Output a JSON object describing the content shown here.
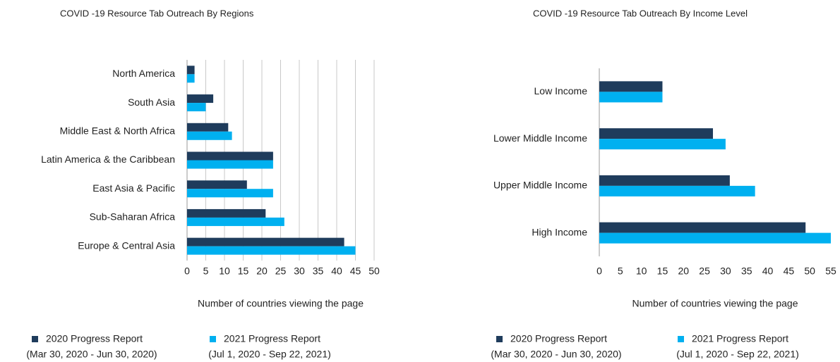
{
  "chart_data": [
    {
      "type": "hbar",
      "title": "COVID -19 Resource Tab Outreach By Regions",
      "categories": [
        "North America",
        "South Asia",
        "Middle East & North Africa",
        "Latin America & the Caribbean",
        "East Asia & Pacific",
        "Sub-Saharan Africa",
        "Europe & Central Asia"
      ],
      "series": [
        {
          "name": "2020 Progress Report",
          "period": "(Mar 30, 2020 - Jun 30, 2020)",
          "color": "#1f3c5c",
          "values": [
            2,
            7,
            11,
            23,
            16,
            21,
            42
          ]
        },
        {
          "name": "2021 Progress Report",
          "period": "(Jul 1, 2020 - Sep 22, 2021)",
          "color": "#00b0f0",
          "values": [
            2,
            5,
            12,
            23,
            23,
            26,
            45
          ]
        }
      ],
      "xlabel": "Number of countries viewing the page",
      "xlim": [
        0,
        50
      ],
      "xticks": [
        0,
        5,
        10,
        15,
        20,
        25,
        30,
        35,
        40,
        45,
        50
      ],
      "grid": true
    },
    {
      "type": "hbar",
      "title": "COVID -19 Resource Tab Outreach By Income Level",
      "categories": [
        "Low Income",
        "Lower Middle Income",
        "Upper Middle Income",
        "High Income"
      ],
      "series": [
        {
          "name": "2020 Progress Report",
          "period": "(Mar 30, 2020 - Jun 30, 2020)",
          "color": "#1f3c5c",
          "values": [
            15,
            27,
            31,
            49
          ]
        },
        {
          "name": "2021 Progress Report",
          "period": "(Jul 1, 2020 - Sep 22, 2021)",
          "color": "#00b0f0",
          "values": [
            15,
            30,
            37,
            55
          ]
        }
      ],
      "xlabel": "Number of countries viewing the page",
      "xlim": [
        0,
        55
      ],
      "xticks": [
        0,
        5,
        10,
        15,
        20,
        25,
        30,
        35,
        40,
        45,
        50,
        55
      ],
      "grid": false
    }
  ]
}
